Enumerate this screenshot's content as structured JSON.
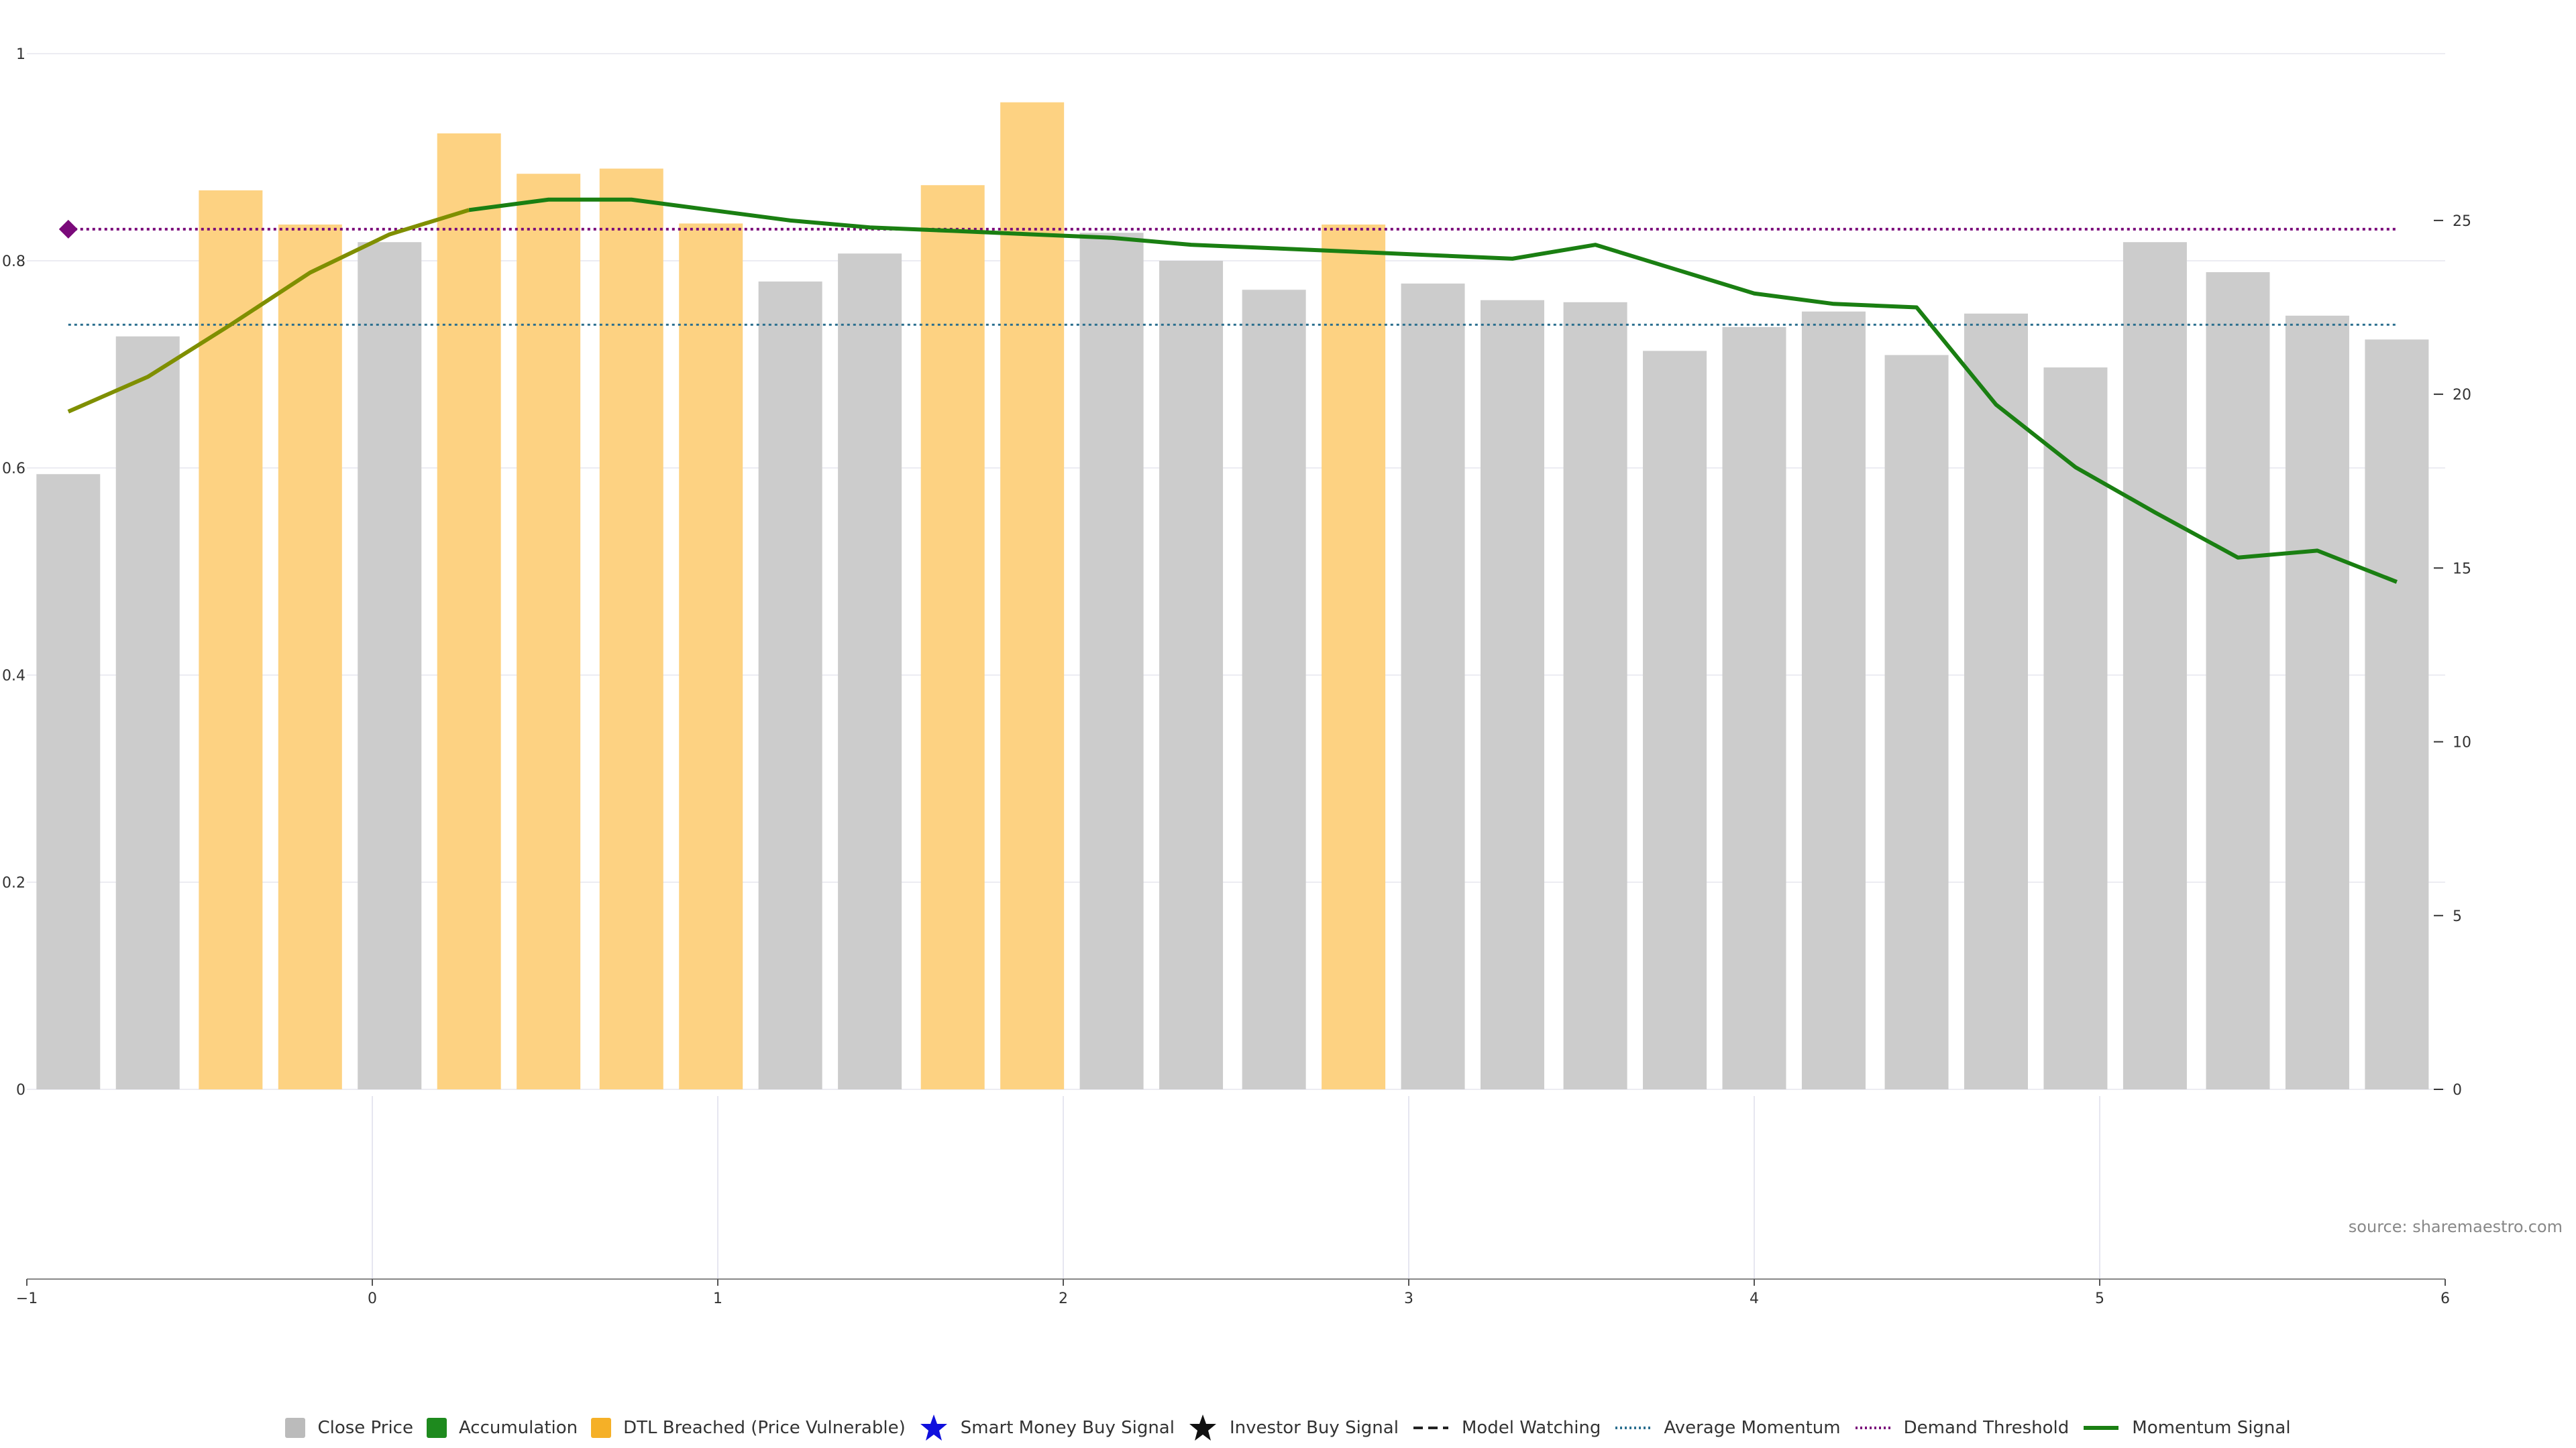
{
  "chart_data": {
    "type": "bar",
    "x": [
      -0.88,
      -0.65,
      -0.41,
      -0.18,
      0.05,
      0.28,
      0.51,
      0.75,
      0.98,
      1.21,
      1.44,
      1.68,
      1.91,
      2.14,
      2.37,
      2.61,
      2.84,
      3.07,
      3.3,
      3.54,
      3.77,
      4.0,
      4.23,
      4.47,
      4.7,
      4.93,
      5.16,
      5.4,
      5.63,
      5.86
    ],
    "close_price": [
      0.594,
      0.727,
      0.868,
      0.835,
      0.818,
      0.923,
      0.884,
      0.889,
      0.836,
      0.78,
      0.807,
      0.873,
      0.953,
      0.827,
      0.8,
      0.772,
      0.835,
      0.778,
      0.762,
      0.76,
      0.713,
      0.736,
      0.751,
      0.709,
      0.749,
      0.697,
      0.818,
      0.789,
      0.747,
      0.724
    ],
    "status": [
      "gray",
      "gray",
      "orange",
      "orange",
      "gray",
      "orange",
      "orange",
      "orange",
      "orange",
      "gray",
      "gray",
      "orange",
      "orange",
      "gray",
      "gray",
      "gray",
      "orange",
      "gray",
      "gray",
      "gray",
      "gray",
      "gray",
      "gray",
      "gray",
      "gray",
      "gray",
      "gray",
      "gray",
      "gray",
      "gray"
    ],
    "momentum_signal": [
      19.5,
      20.5,
      22.0,
      23.5,
      24.6,
      25.3,
      25.6,
      25.6,
      25.3,
      25.0,
      24.8,
      24.7,
      24.6,
      24.5,
      24.3,
      24.2,
      24.1,
      24.0,
      23.9,
      24.3,
      23.6,
      22.9,
      22.6,
      22.5,
      19.7,
      17.9,
      16.6,
      15.3,
      15.5,
      14.6
    ],
    "average_momentum": 22.0,
    "demand_threshold": 24.75,
    "demand_marker_x": -0.88,
    "y_left": {
      "min": 0,
      "max": 1,
      "ticks": [
        0,
        0.2,
        0.4,
        0.6,
        0.8,
        1
      ],
      "tick_labels": [
        "0",
        "0.2",
        "0.4",
        "0.6",
        "0.8",
        "1"
      ]
    },
    "y_right": {
      "min": 0,
      "max": 29.8,
      "ticks": [
        0,
        5,
        10,
        15,
        20,
        25
      ],
      "tick_labels": [
        "0",
        "5",
        "10",
        "15",
        "20",
        "25"
      ]
    },
    "x_axis": {
      "min": -1,
      "max": 6,
      "ticks": [
        -1,
        0,
        1,
        2,
        3,
        4,
        5,
        6
      ],
      "tick_labels": [
        "−1",
        "0",
        "1",
        "2",
        "3",
        "4",
        "5",
        "6"
      ]
    },
    "grid": true,
    "legend_position": "bottom-center"
  },
  "colors": {
    "close_price": "#cccccc",
    "accumulation": "#1e8a1e",
    "dtl_breached": "#fdd282",
    "dtl_swatch": "#f5b027",
    "smart_money": "#1010dd",
    "investor": "#111111",
    "model_watching": "#222222",
    "average_momentum": "#2b6f8f",
    "demand_threshold": "#7a0a7a",
    "momentum_signal": "#1a7f12",
    "momentum_signal_early": "#7f8f00",
    "gridline": "#ececf2"
  },
  "source_text": "source: sharemaestro.com",
  "legend": [
    {
      "label": "Close Price",
      "kind": "swatch",
      "color": "#bbbbbb"
    },
    {
      "label": "Accumulation",
      "kind": "swatch",
      "color": "#1e8a1e"
    },
    {
      "label": "DTL Breached (Price Vulnerable)",
      "kind": "swatch",
      "color": "#f5b027"
    },
    {
      "label": "Smart Money Buy Signal",
      "kind": "star",
      "color": "#1010dd"
    },
    {
      "label": "Investor Buy Signal",
      "kind": "star",
      "color": "#111111"
    },
    {
      "label": "Model Watching",
      "kind": "dash",
      "color": "#222222"
    },
    {
      "label": "Average Momentum",
      "kind": "dot",
      "color": "#2b6f8f"
    },
    {
      "label": "Demand Threshold",
      "kind": "dot",
      "color": "#7a0a7a"
    },
    {
      "label": "Momentum Signal",
      "kind": "solid",
      "color": "#1a7f12"
    }
  ]
}
